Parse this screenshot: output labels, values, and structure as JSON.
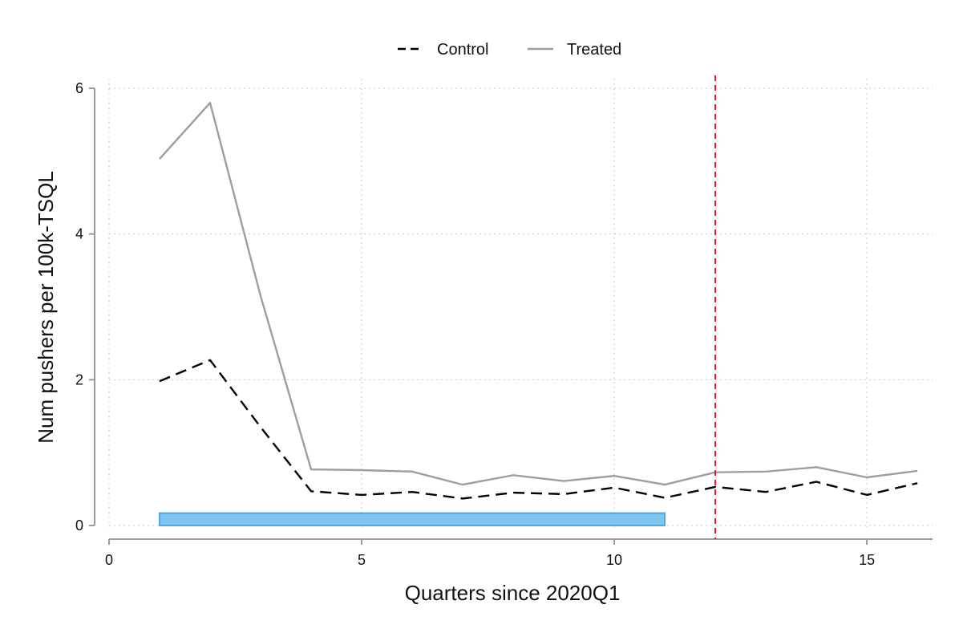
{
  "chart_data": {
    "type": "line",
    "xlabel": "Quarters since 2020Q1",
    "ylabel": "Num pushers per 100k-TSQL",
    "xlim": [
      0,
      16.3
    ],
    "ylim": [
      0,
      6
    ],
    "xticks": [
      "0",
      "5",
      "10",
      "15"
    ],
    "yticks": [
      "0",
      "2",
      "4",
      "6"
    ],
    "grid": true,
    "legend_position": "top-center",
    "x": [
      1,
      2,
      3,
      4,
      5,
      6,
      7,
      8,
      9,
      10,
      11,
      12,
      13,
      14,
      15,
      16
    ],
    "series": [
      {
        "name": "Control",
        "style": "dashed",
        "color": "#000000",
        "values": [
          1.98,
          2.27,
          1.35,
          0.47,
          0.42,
          0.46,
          0.37,
          0.45,
          0.43,
          0.52,
          0.38,
          0.53,
          0.46,
          0.6,
          0.42,
          0.58
        ]
      },
      {
        "name": "Treated",
        "style": "solid",
        "color": "#9e9e9e",
        "values": [
          5.03,
          5.8,
          3.15,
          0.77,
          0.76,
          0.74,
          0.56,
          0.69,
          0.61,
          0.68,
          0.56,
          0.73,
          0.74,
          0.8,
          0.66,
          0.75
        ]
      }
    ],
    "annotations": {
      "vertical_line": {
        "x": 12,
        "color": "#e41a1c",
        "style": "dashed"
      },
      "period_bar": {
        "x_start": 1,
        "x_end": 11,
        "y_low": 0,
        "y_high": 0.17,
        "color": "#7dc4ee",
        "edge_color": "#4fa9df"
      }
    }
  }
}
